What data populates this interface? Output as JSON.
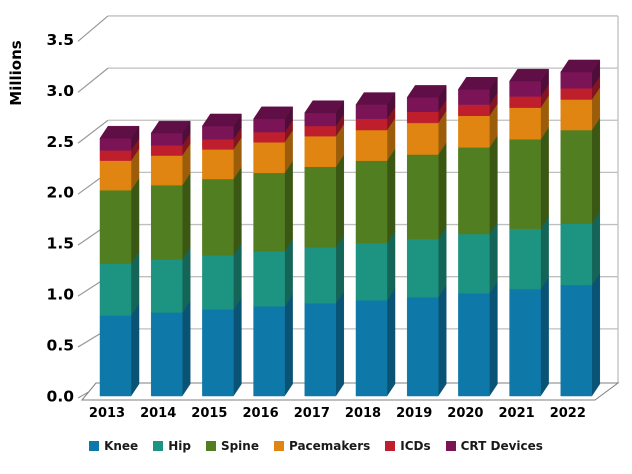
{
  "chart_data": {
    "type": "bar",
    "stacked": true,
    "style": "3d-extruded-columns",
    "title": "",
    "xlabel": "",
    "ylabel": "Millions",
    "ylim": [
      0,
      3.5
    ],
    "grid": true,
    "legend_position": "bottom",
    "y_ticks": [
      "0.0",
      "0.5",
      "1.0",
      "1.5",
      "2.0",
      "2.5",
      "3.0",
      "3.5"
    ],
    "categories": [
      "2013",
      "2014",
      "2015",
      "2016",
      "2017",
      "2018",
      "2019",
      "2020",
      "2021",
      "2022"
    ],
    "series": [
      {
        "name": "Knee",
        "color": "#0E79A8",
        "side_color": "#0B5375",
        "values": [
          0.79,
          0.82,
          0.85,
          0.88,
          0.91,
          0.94,
          0.97,
          1.01,
          1.05,
          1.09
        ]
      },
      {
        "name": "Hip",
        "color": "#1D9381",
        "side_color": "#156458",
        "values": [
          0.51,
          0.52,
          0.53,
          0.54,
          0.55,
          0.56,
          0.57,
          0.58,
          0.59,
          0.6
        ]
      },
      {
        "name": "Spine",
        "color": "#527E22",
        "side_color": "#3A5814",
        "values": [
          0.72,
          0.73,
          0.75,
          0.77,
          0.79,
          0.81,
          0.83,
          0.85,
          0.88,
          0.92
        ]
      },
      {
        "name": "Pacemakers",
        "color": "#E08511",
        "side_color": "#9C5D0A",
        "values": [
          0.29,
          0.29,
          0.29,
          0.3,
          0.3,
          0.3,
          0.31,
          0.31,
          0.31,
          0.3
        ]
      },
      {
        "name": "ICDs",
        "color": "#BF1F2D",
        "side_color": "#84141F",
        "values": [
          0.1,
          0.1,
          0.1,
          0.1,
          0.1,
          0.11,
          0.11,
          0.11,
          0.11,
          0.11
        ]
      },
      {
        "name": "CRT Devices",
        "color": "#7B1457",
        "side_color": "#4F0D39",
        "top_color": "#5F0F45",
        "values": [
          0.12,
          0.12,
          0.13,
          0.13,
          0.13,
          0.14,
          0.14,
          0.15,
          0.15,
          0.16
        ]
      }
    ],
    "colors": {
      "gridline": "#BFBFBF",
      "tick": "#999999",
      "floor_edge": "#7F7F7F",
      "axis_text": "#000000"
    }
  }
}
